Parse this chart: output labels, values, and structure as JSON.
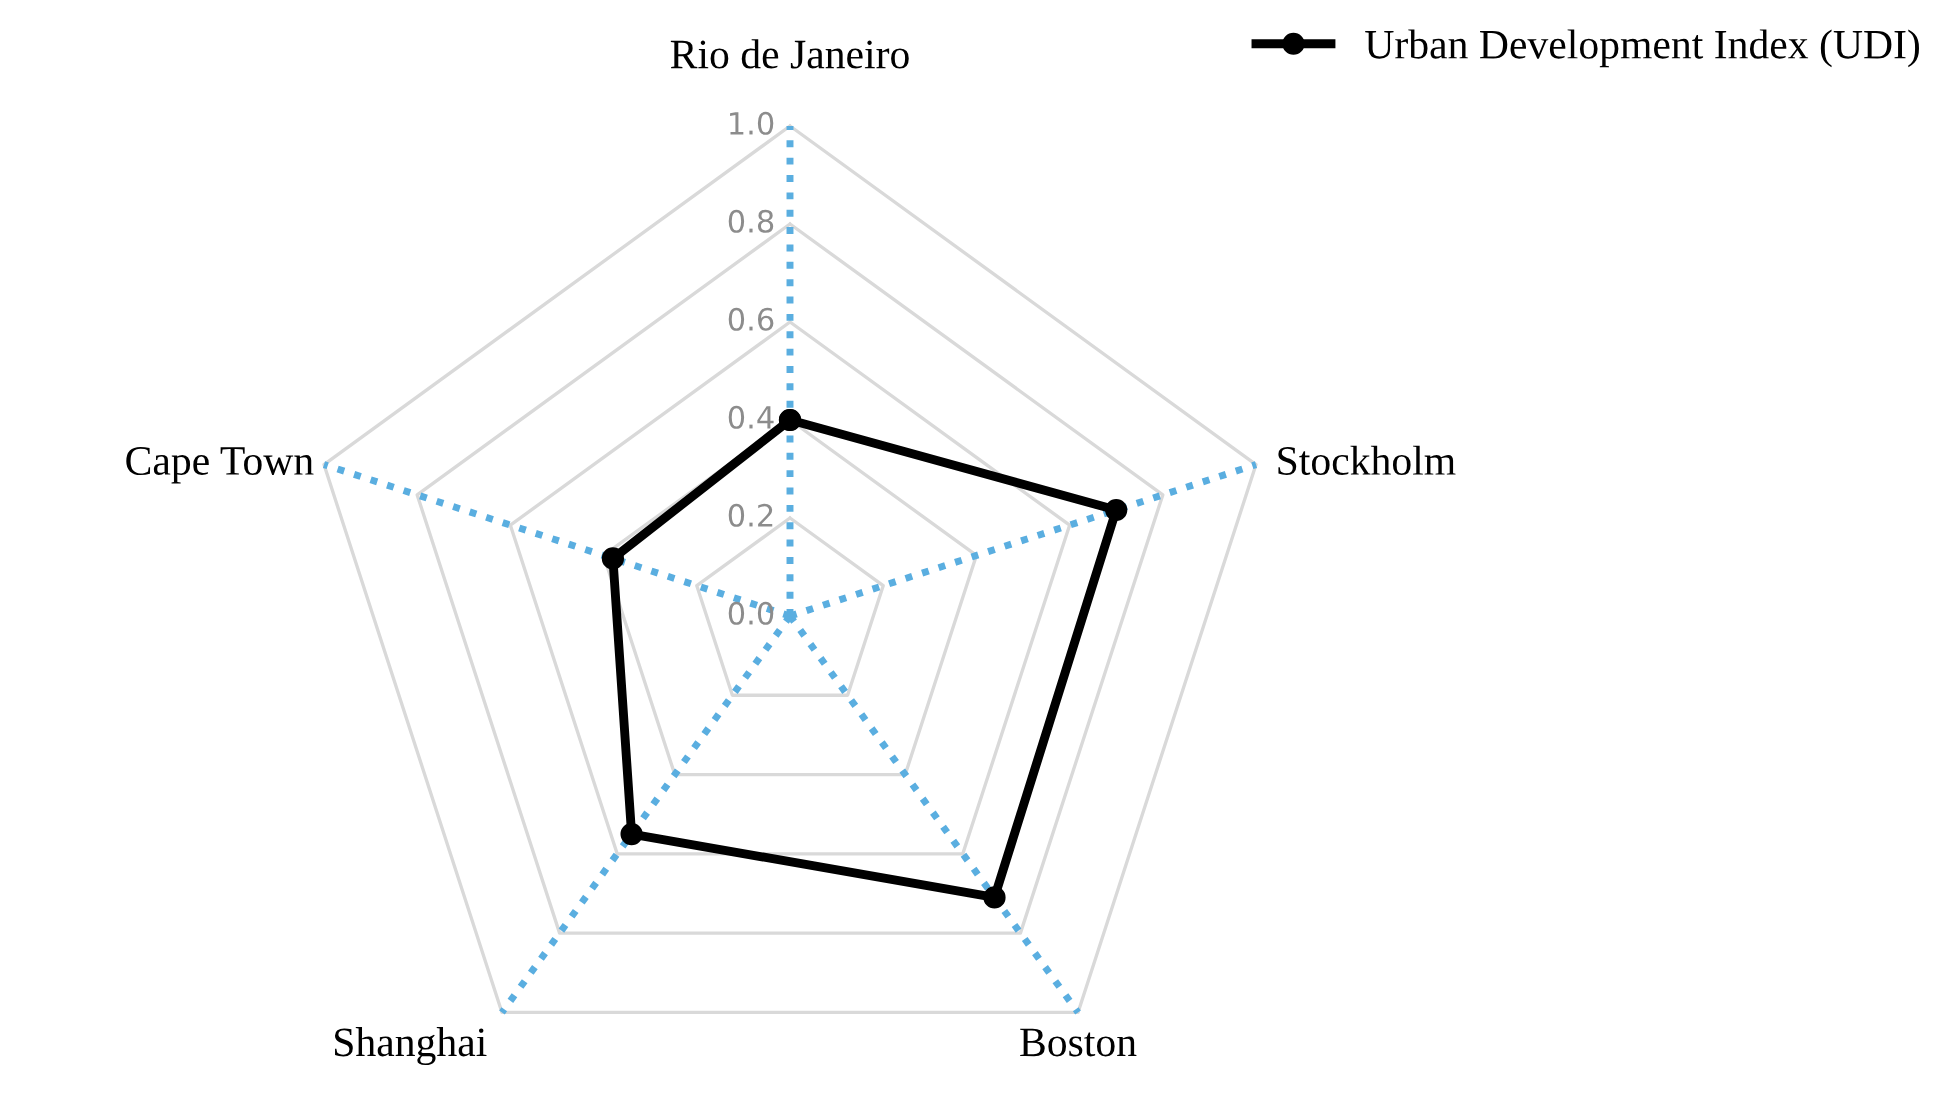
{
  "chart_data": {
    "type": "radar",
    "categories": [
      "Rio de Janeiro",
      "Stockholm",
      "Boston",
      "Shanghai",
      "Cape Town"
    ],
    "series": [
      {
        "name": "Urban Development Index (UDI)",
        "color": "#000000",
        "values": [
          0.4,
          0.7,
          0.71,
          0.55,
          0.38
        ]
      }
    ],
    "ylim": [
      0,
      1
    ],
    "yticks": [
      {
        "value": 0,
        "label": "0.0"
      },
      0.2,
      0.4,
      0.6,
      0.8,
      {
        "value": 1,
        "label": "1.0"
      }
    ],
    "grid": true,
    "legend": "top right",
    "marker": "circle",
    "line_style": "solid"
  }
}
